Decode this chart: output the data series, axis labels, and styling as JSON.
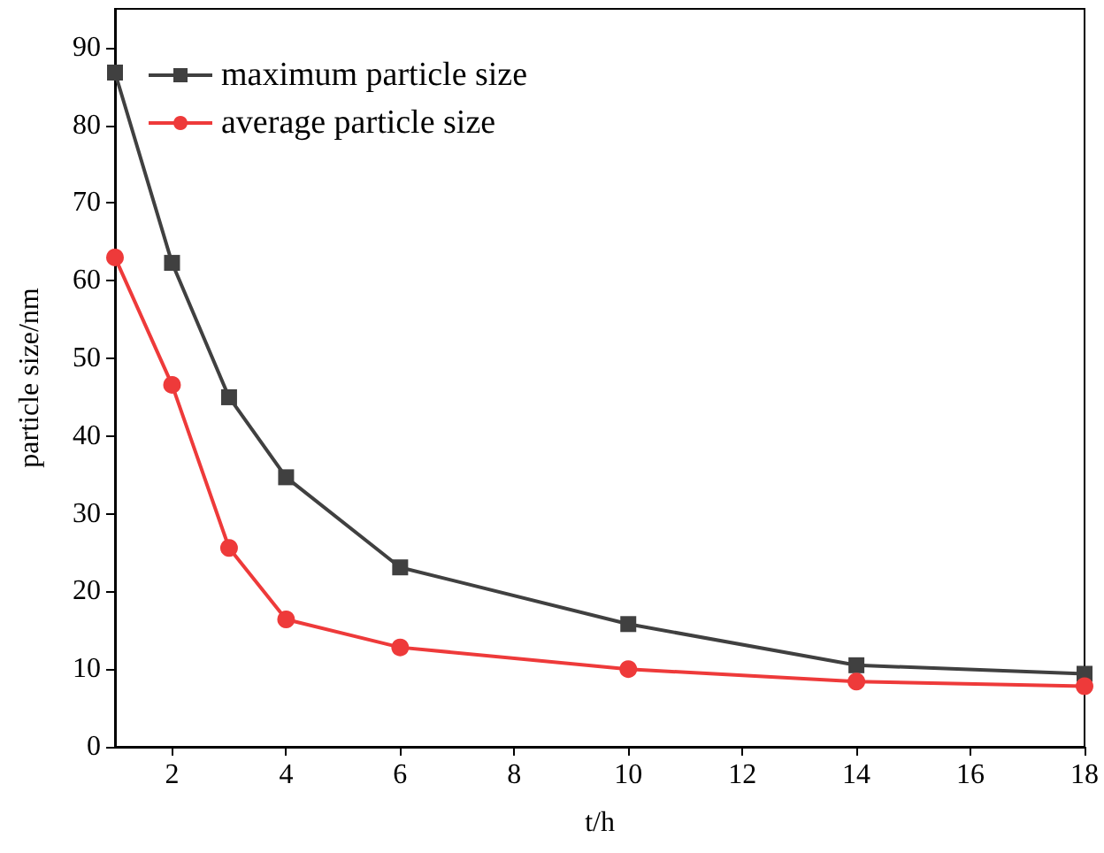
{
  "chart_data": {
    "type": "line",
    "xlabel": "t/h",
    "ylabel": "particle size/nm",
    "x": [
      1,
      2,
      3,
      4,
      6,
      10,
      14,
      18
    ],
    "series": [
      {
        "name": "maximum particle size",
        "color": "#404040",
        "marker": "square",
        "values": [
          86.8,
          62.3,
          45.0,
          34.7,
          23.1,
          15.8,
          10.5,
          9.4
        ]
      },
      {
        "name": "average particle size",
        "color": "#ee3a3a",
        "marker": "circle",
        "values": [
          63.0,
          46.6,
          25.6,
          16.4,
          12.8,
          10.0,
          8.4,
          7.8
        ]
      }
    ],
    "xlim": [
      1,
      18
    ],
    "xticks": [
      2,
      4,
      6,
      8,
      10,
      12,
      14,
      16,
      18
    ],
    "ylim": [
      0,
      95
    ],
    "yticks": [
      0,
      10,
      20,
      30,
      40,
      50,
      60,
      70,
      80,
      90
    ],
    "grid": false,
    "legend": "top left",
    "line_style": "solid"
  }
}
